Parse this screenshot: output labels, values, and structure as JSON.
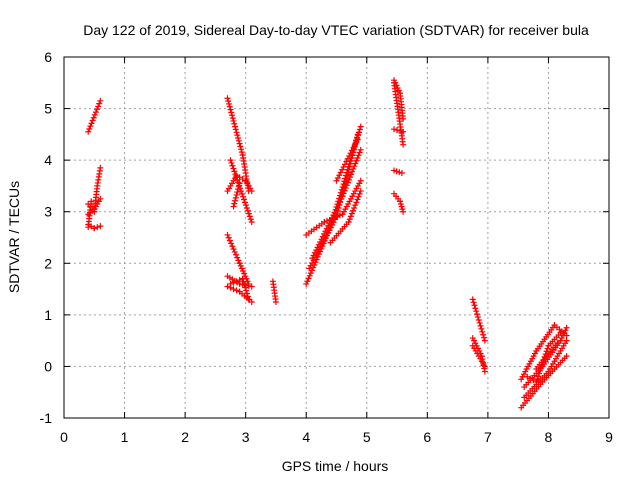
{
  "chart_data": {
    "type": "scatter",
    "title": "Day 122 of 2019, Sidereal Day-to-day VTEC variation (SDTVAR) for receiver bula",
    "xlabel": "GPS time / hours",
    "ylabel": "SDTVAR / TECUs",
    "xlim": [
      0,
      9
    ],
    "ylim": [
      -1,
      6
    ],
    "xticks": [
      0,
      1,
      2,
      3,
      4,
      5,
      6,
      7,
      8,
      9
    ],
    "yticks": [
      -1,
      0,
      1,
      2,
      3,
      4,
      5,
      6
    ],
    "grid": true,
    "marker": "+",
    "series": [
      {
        "name": "SDTVAR",
        "color": "#ff0000",
        "segments": [
          [
            [
              0.4,
              4.55
            ],
            [
              0.6,
              5.15
            ]
          ],
          [
            [
              0.4,
              3.15
            ],
            [
              0.5,
              3.0
            ],
            [
              0.55,
              3.5
            ],
            [
              0.6,
              3.85
            ]
          ],
          [
            [
              0.4,
              2.95
            ],
            [
              0.5,
              3.05
            ],
            [
              0.6,
              3.25
            ]
          ],
          [
            [
              0.4,
              2.75
            ],
            [
              0.5,
              2.68
            ],
            [
              0.6,
              2.72
            ]
          ],
          [
            [
              0.4,
              2.7
            ],
            [
              0.45,
              3.2
            ]
          ],
          [
            [
              2.7,
              5.2
            ],
            [
              2.95,
              4.1
            ],
            [
              3.05,
              3.4
            ]
          ],
          [
            [
              2.75,
              4.0
            ],
            [
              3.1,
              2.8
            ]
          ],
          [
            [
              2.7,
              3.4
            ],
            [
              2.85,
              3.7
            ],
            [
              3.0,
              3.6
            ],
            [
              3.1,
              3.4
            ]
          ],
          [
            [
              2.8,
              3.1
            ],
            [
              2.9,
              3.55
            ]
          ],
          [
            [
              2.7,
              2.55
            ],
            [
              2.9,
              2.0
            ],
            [
              3.05,
              1.6
            ]
          ],
          [
            [
              2.7,
              1.75
            ],
            [
              2.9,
              1.6
            ],
            [
              3.1,
              1.55
            ]
          ],
          [
            [
              2.7,
              1.55
            ],
            [
              2.9,
              1.45
            ],
            [
              3.1,
              1.25
            ]
          ],
          [
            [
              2.75,
              1.6
            ],
            [
              2.95,
              1.7
            ],
            [
              3.05,
              1.3
            ]
          ],
          [
            [
              3.45,
              1.65
            ],
            [
              3.5,
              1.25
            ]
          ],
          [
            [
              4.0,
              1.6
            ],
            [
              4.4,
              2.7
            ],
            [
              4.9,
              4.65
            ]
          ],
          [
            [
              4.05,
              1.9
            ],
            [
              4.5,
              2.9
            ],
            [
              4.85,
              4.5
            ]
          ],
          [
            [
              4.1,
              2.1
            ],
            [
              4.6,
              3.3
            ],
            [
              4.9,
              4.2
            ]
          ],
          [
            [
              4.0,
              2.55
            ],
            [
              4.3,
              2.8
            ],
            [
              4.6,
              2.95
            ],
            [
              4.9,
              3.6
            ]
          ],
          [
            [
              4.4,
              2.4
            ],
            [
              4.7,
              2.8
            ],
            [
              4.9,
              3.4
            ]
          ],
          [
            [
              4.5,
              3.6
            ],
            [
              4.85,
              4.4
            ]
          ],
          [
            [
              5.45,
              5.55
            ],
            [
              5.55,
              5.3
            ],
            [
              5.6,
              4.8
            ]
          ],
          [
            [
              5.45,
              5.5
            ],
            [
              5.6,
              4.3
            ]
          ],
          [
            [
              5.45,
              4.6
            ],
            [
              5.6,
              4.55
            ]
          ],
          [
            [
              5.45,
              3.8
            ],
            [
              5.58,
              3.75
            ]
          ],
          [
            [
              5.45,
              3.35
            ],
            [
              5.55,
              3.2
            ],
            [
              5.6,
              3.0
            ]
          ],
          [
            [
              6.75,
              1.3
            ],
            [
              6.95,
              0.5
            ]
          ],
          [
            [
              6.75,
              0.55
            ],
            [
              6.9,
              0.2
            ],
            [
              6.95,
              -0.1
            ]
          ],
          [
            [
              6.75,
              0.4
            ],
            [
              6.95,
              0.0
            ]
          ],
          [
            [
              7.55,
              -0.25
            ],
            [
              7.8,
              0.3
            ],
            [
              8.1,
              0.8
            ],
            [
              8.3,
              0.6
            ]
          ],
          [
            [
              7.55,
              -0.8
            ],
            [
              7.9,
              -0.3
            ],
            [
              8.3,
              0.2
            ]
          ],
          [
            [
              7.6,
              -0.6
            ],
            [
              8.0,
              -0.1
            ],
            [
              8.3,
              0.5
            ]
          ],
          [
            [
              7.6,
              -0.4
            ],
            [
              7.9,
              0.0
            ],
            [
              8.2,
              0.5
            ],
            [
              8.3,
              0.75
            ]
          ],
          [
            [
              7.65,
              -0.2
            ],
            [
              7.8,
              -0.3
            ],
            [
              8.0,
              0.4
            ],
            [
              8.2,
              0.65
            ]
          ],
          [
            [
              7.8,
              -0.05
            ],
            [
              8.0,
              0.25
            ],
            [
              8.15,
              0.45
            ]
          ]
        ]
      }
    ]
  }
}
